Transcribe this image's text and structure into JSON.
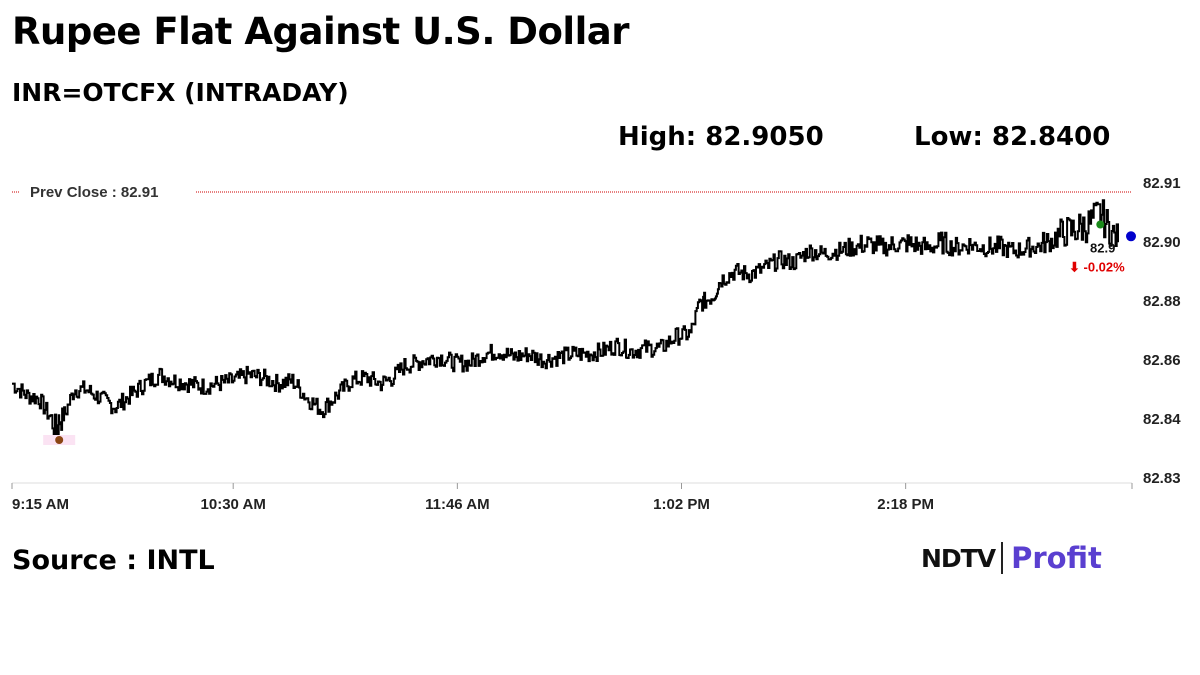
{
  "header": {
    "title": "Rupee Flat Against U.S. Dollar",
    "subtitle": "INR=OTCFX (INTRADAY)",
    "high_label": "High: 82.9050",
    "low_label": "Low: 82.8400"
  },
  "footer": {
    "source": "Source : INTL",
    "logo_ndtv": "NDTV",
    "logo_profit": "Profit"
  },
  "colors": {
    "line": "#000000",
    "prev_close": "#cc0000",
    "high_marker": "#1a8a1a",
    "low_marker": "#8b4513",
    "last_marker": "#0000cc",
    "change": "#e00000",
    "grid": "#dddddd"
  },
  "chart_data": {
    "type": "line",
    "ylim": [
      82.83,
      82.91
    ],
    "y_ticks": [
      "82.91",
      "82.90",
      "82.88",
      "82.86",
      "82.84",
      "82.83"
    ],
    "y_tick_values": [
      82.91,
      82.9,
      82.88,
      82.86,
      82.84,
      82.83
    ],
    "x_ticks": [
      "9:15 AM",
      "10:30 AM",
      "11:46 AM",
      "1:02 PM",
      "2:18 PM"
    ],
    "x_tick_minutes": [
      555,
      630,
      706,
      782,
      858
    ],
    "x_range_minutes": [
      555,
      930
    ],
    "prev_close_label": "Prev Close : 82.91",
    "prev_close_value": 82.91,
    "last_value_label": "82.9",
    "change_label": "⬇ -0.02%",
    "high": {
      "x": 924,
      "y": 82.905
    },
    "low": {
      "x": 571,
      "y": 82.84
    },
    "last": {
      "x": 930,
      "y": 82.8999
    },
    "series": [
      {
        "x": [
          555,
          560,
          564,
          567,
          570,
          571,
          573,
          576,
          580,
          585,
          590,
          595,
          600,
          605,
          610,
          615,
          620,
          625,
          630,
          635,
          640,
          645,
          650,
          655,
          660,
          665,
          670,
          675,
          680,
          684,
          688,
          692,
          695,
          700,
          705,
          710,
          715,
          720,
          725,
          730,
          735,
          740,
          745,
          750,
          755,
          760,
          765,
          770,
          775,
          780,
          785,
          788,
          790,
          793,
          795,
          800,
          805,
          810,
          815,
          820,
          825,
          830,
          835,
          840,
          845,
          850,
          855,
          860,
          865,
          870,
          875,
          880,
          885,
          890,
          895,
          900,
          905,
          910,
          915,
          920,
          924,
          927,
          930
        ],
        "y": [
          82.852,
          82.848,
          82.847,
          82.842,
          82.838,
          82.84,
          82.842,
          82.85,
          82.85,
          82.847,
          82.844,
          82.848,
          82.852,
          82.855,
          82.853,
          82.852,
          82.851,
          82.852,
          82.853,
          82.855,
          82.854,
          82.852,
          82.853,
          82.847,
          82.843,
          82.848,
          82.853,
          82.854,
          82.852,
          82.854,
          82.858,
          82.859,
          82.86,
          82.861,
          82.859,
          82.859,
          82.862,
          82.863,
          82.861,
          82.862,
          82.86,
          82.861,
          82.862,
          82.862,
          82.863,
          82.865,
          82.863,
          82.864,
          82.864,
          82.868,
          82.869,
          82.879,
          82.88,
          82.882,
          82.887,
          82.89,
          82.889,
          82.891,
          82.894,
          82.893,
          82.897,
          82.896,
          82.897,
          82.898,
          82.899,
          82.898,
          82.899,
          82.899,
          82.898,
          82.899,
          82.898,
          82.899,
          82.898,
          82.898,
          82.897,
          82.898,
          82.899,
          82.901,
          82.902,
          82.903,
          82.905,
          82.902,
          82.8999
        ]
      }
    ]
  }
}
